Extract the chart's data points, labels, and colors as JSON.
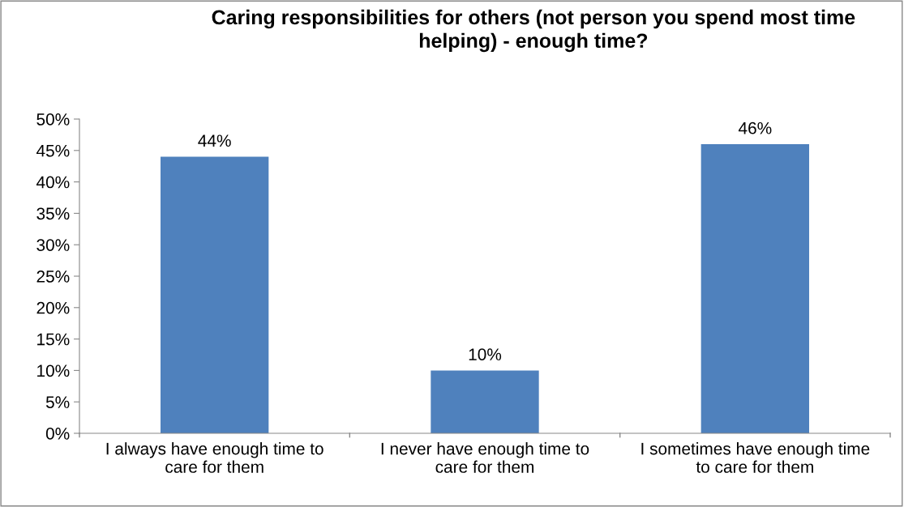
{
  "chart_data": {
    "type": "bar",
    "title": "Caring responsibilities for others (not person you spend most time\nhelping) - enough time?",
    "categories": [
      "I always have enough time to\ncare for them",
      "I never have enough time to\ncare for them",
      "I sometimes have enough time\nto care for them"
    ],
    "values": [
      44,
      10,
      46
    ],
    "color": "#4f81bd",
    "value_labels": [
      "44%",
      "10%",
      "46%"
    ],
    "ylim": [
      0,
      50
    ],
    "yticks": [
      {
        "value": 0,
        "label": "0%"
      },
      {
        "value": 5,
        "label": "5%"
      },
      {
        "value": 10,
        "label": "10%"
      },
      {
        "value": 15,
        "label": "15%"
      },
      {
        "value": 20,
        "label": "20%"
      },
      {
        "value": 25,
        "label": "25%"
      },
      {
        "value": 30,
        "label": "30%"
      },
      {
        "value": 35,
        "label": "35%"
      },
      {
        "value": 40,
        "label": "40%"
      },
      {
        "value": 45,
        "label": "45%"
      },
      {
        "value": 50,
        "label": "50%"
      }
    ],
    "grid": false,
    "legend": false
  }
}
